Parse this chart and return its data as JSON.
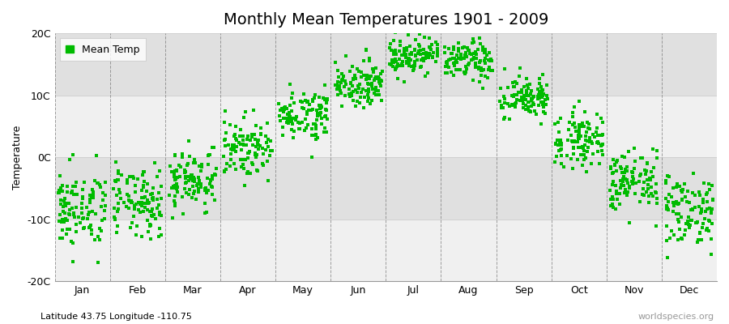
{
  "title": "Monthly Mean Temperatures 1901 - 2009",
  "ylabel": "Temperature",
  "subtitle": "Latitude 43.75 Longitude -110.75",
  "watermark": "worldspecies.org",
  "legend_label": "Mean Temp",
  "dot_color": "#00BB00",
  "dot_size": 6,
  "ylim": [
    -20,
    20
  ],
  "yticks": [
    -20,
    -10,
    0,
    10,
    20
  ],
  "ytick_labels": [
    "-20C",
    "-10C",
    "0C",
    "10C",
    "20C"
  ],
  "month_names": [
    "Jan",
    "Feb",
    "Mar",
    "Apr",
    "May",
    "Jun",
    "Jul",
    "Aug",
    "Sep",
    "Oct",
    "Nov",
    "Dec"
  ],
  "monthly_means": [
    -8.5,
    -7.5,
    -3.5,
    1.5,
    7.0,
    12.0,
    16.5,
    15.5,
    9.5,
    3.0,
    -4.0,
    -8.5
  ],
  "monthly_stds": [
    3.2,
    2.8,
    2.5,
    2.3,
    2.0,
    1.8,
    1.5,
    1.6,
    1.8,
    2.2,
    2.5,
    3.0
  ],
  "n_years": 109,
  "figure_bg": "#FFFFFF",
  "plot_bg_light": "#F0F0F0",
  "plot_bg_dark": "#E0E0E0",
  "vline_color": "#666666",
  "title_fontsize": 14,
  "label_fontsize": 9,
  "tick_fontsize": 9
}
